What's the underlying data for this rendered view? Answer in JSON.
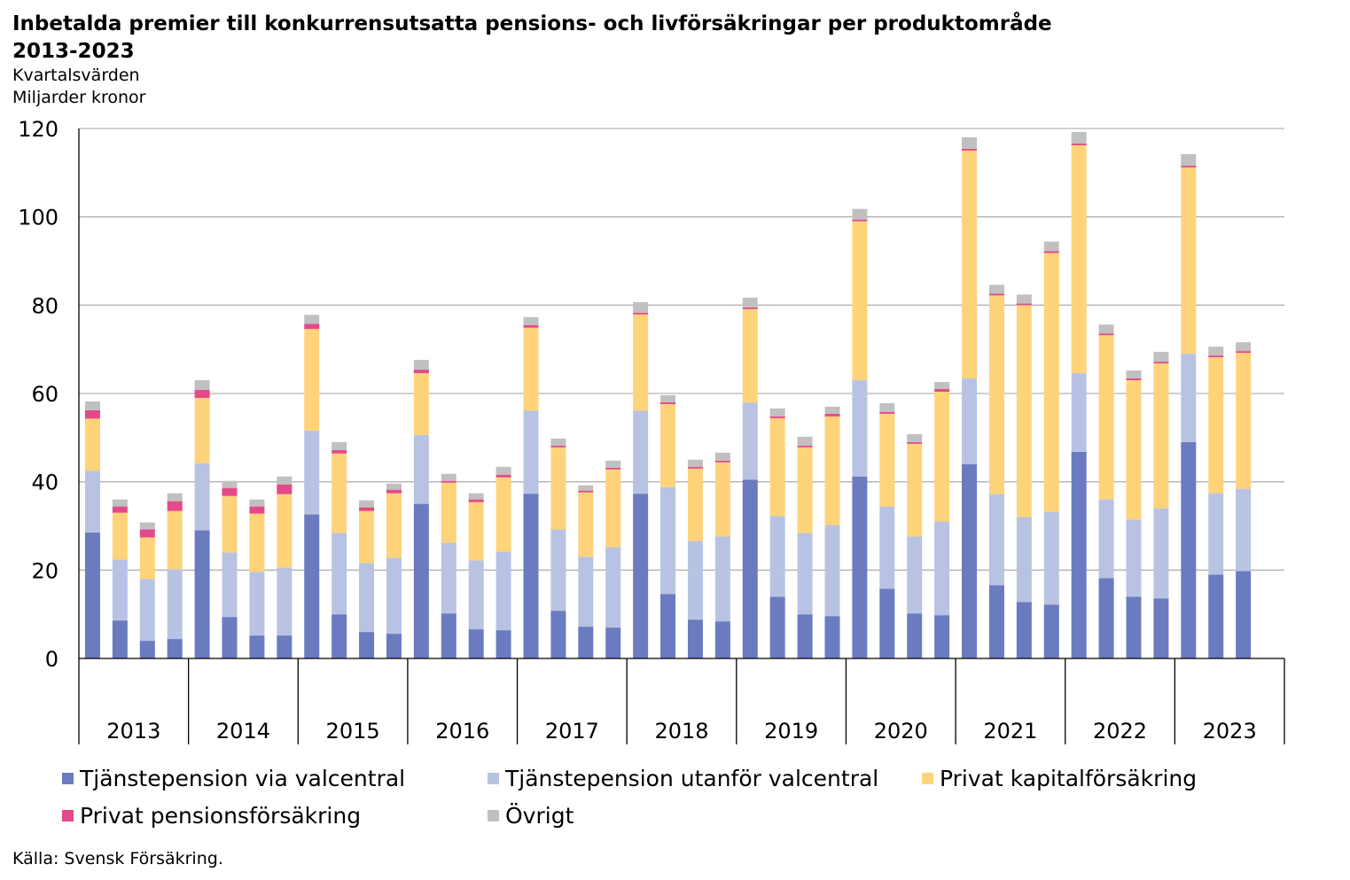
{
  "title": "Inbetalda premier till konkurrensutsatta pensions- och livförsäkringar per produktområde 2013-2023",
  "subtitle1": "Kvartalsvärden",
  "subtitle2": "Miljarder kronor",
  "source": "Källa: Svensk Försäkring.",
  "chart_data": {
    "type": "bar",
    "stacked": true,
    "title": "Inbetalda premier till konkurrensutsatta pensions- och livförsäkringar per produktområde 2013-2023",
    "ylabel": "Miljarder kronor",
    "ylim": [
      0,
      120
    ],
    "yticks": [
      0,
      20,
      40,
      60,
      80,
      100,
      120
    ],
    "grid": true,
    "legend_position": "bottom",
    "years": [
      "2013",
      "2014",
      "2015",
      "2016",
      "2017",
      "2018",
      "2019",
      "2020",
      "2021",
      "2022",
      "2023"
    ],
    "quarters_per_year": 4,
    "categories": [
      "2013 Q1",
      "2013 Q2",
      "2013 Q3",
      "2013 Q4",
      "2014 Q1",
      "2014 Q2",
      "2014 Q3",
      "2014 Q4",
      "2015 Q1",
      "2015 Q2",
      "2015 Q3",
      "2015 Q4",
      "2016 Q1",
      "2016 Q2",
      "2016 Q3",
      "2016 Q4",
      "2017 Q1",
      "2017 Q2",
      "2017 Q3",
      "2017 Q4",
      "2018 Q1",
      "2018 Q2",
      "2018 Q3",
      "2018 Q4",
      "2019 Q1",
      "2019 Q2",
      "2019 Q3",
      "2019 Q4",
      "2020 Q1",
      "2020 Q2",
      "2020 Q3",
      "2020 Q4",
      "2021 Q1",
      "2021 Q2",
      "2021 Q3",
      "2021 Q4",
      "2022 Q1",
      "2022 Q2",
      "2022 Q3",
      "2022 Q4",
      "2023 Q1",
      "2023 Q2",
      "2023 Q3"
    ],
    "series": [
      {
        "name": "Tjänstepension via valcentral",
        "color": "#6a7bbf",
        "values": [
          28.5,
          8.6,
          4,
          4.4,
          29,
          9.4,
          5.2,
          5.2,
          32.6,
          10,
          6,
          5.6,
          35,
          10.2,
          6.6,
          6.4,
          37.3,
          10.8,
          7.2,
          7,
          37.3,
          14.6,
          8.8,
          8.4,
          40.5,
          14,
          10,
          9.6,
          41.2,
          15.8,
          10.2,
          9.8,
          44,
          16.6,
          12.8,
          12.2,
          46.8,
          18.2,
          14,
          13.6,
          49,
          19,
          19.8
        ]
      },
      {
        "name": "Tjänstepension utanför valcentral",
        "color": "#b8c3e4",
        "values": [
          14,
          13.8,
          14,
          15.8,
          15.2,
          14.6,
          14.4,
          15.4,
          19,
          18.4,
          15.6,
          17.2,
          15.6,
          16,
          15.6,
          17.8,
          18.8,
          18.4,
          15.8,
          18.2,
          18.8,
          24.2,
          17.8,
          19.2,
          17.4,
          18.2,
          18.4,
          20.6,
          21.8,
          18.6,
          17.4,
          21.2,
          19.4,
          20.6,
          19.2,
          21,
          17.8,
          17.8,
          17.4,
          20.4,
          20,
          18.4,
          18.6
        ]
      },
      {
        "name": "Privat kapitalförsäkring",
        "color": "#fed37a",
        "values": [
          11.8,
          10.6,
          9.4,
          13.2,
          14.8,
          12.8,
          13.2,
          16.6,
          23,
          18,
          11.8,
          14.6,
          14,
          13.6,
          13.2,
          16.8,
          18.8,
          18.6,
          14.6,
          17.6,
          21.8,
          18.8,
          16.4,
          16.8,
          21.2,
          22.2,
          19.4,
          24.6,
          36,
          21,
          21,
          29.4,
          51.6,
          45,
          48,
          58.6,
          51.6,
          37.2,
          31.6,
          32.8,
          42.2,
          30.8,
          30.8
        ]
      },
      {
        "name": "Privat pensionsförsäkring",
        "color": "#e4498a",
        "values": [
          1.9,
          1.4,
          1.8,
          2.2,
          1.8,
          1.8,
          1.6,
          2.2,
          1.2,
          0.8,
          0.8,
          0.8,
          0.8,
          0.4,
          0.6,
          0.6,
          0.6,
          0.4,
          0.4,
          0.4,
          0.4,
          0.4,
          0.4,
          0.4,
          0.4,
          0.4,
          0.4,
          0.6,
          0.4,
          0.4,
          0.4,
          0.6,
          0.4,
          0.4,
          0.4,
          0.4,
          0.4,
          0.4,
          0.4,
          0.4,
          0.4,
          0.4,
          0.4
        ]
      },
      {
        "name": "Övrigt",
        "color": "#c0c0c0",
        "values": [
          2,
          1.6,
          1.6,
          1.8,
          2.2,
          1.6,
          1.6,
          1.8,
          2,
          1.8,
          1.6,
          1.4,
          2.2,
          1.6,
          1.4,
          1.8,
          1.8,
          1.6,
          1.2,
          1.6,
          2.4,
          1.6,
          1.6,
          1.8,
          2.2,
          1.8,
          2,
          1.6,
          2.4,
          2,
          1.8,
          1.6,
          2.6,
          2,
          2,
          2.2,
          2.6,
          2,
          1.8,
          2.2,
          2.6,
          2,
          2
        ]
      }
    ]
  }
}
